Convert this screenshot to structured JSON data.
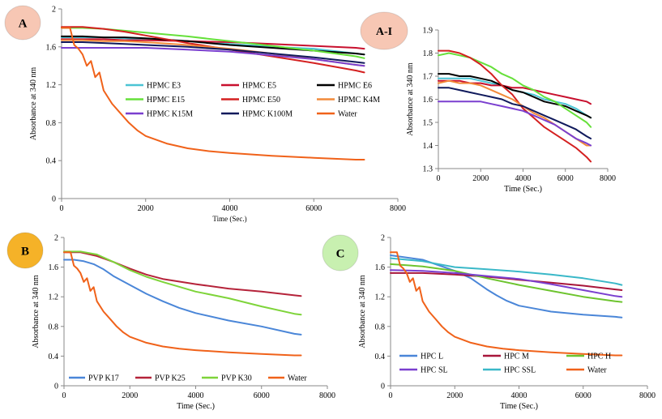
{
  "chart_data": [
    {
      "id": "A",
      "type": "line",
      "badge": "A",
      "badge_color": "#f7c7b4",
      "xlabel": "Time (Sec.)",
      "ylabel": "Absorbance at 340 nm",
      "xlim": [
        0,
        8000
      ],
      "ylim": [
        0,
        2
      ],
      "xticks": [
        0,
        2000,
        4000,
        6000,
        8000
      ],
      "yticks": [
        0,
        0.4,
        0.8,
        1.2,
        1.6,
        2
      ],
      "ytick_labels": [
        "0",
        "0.4",
        "0.8",
        "1.2",
        "1.6",
        "2"
      ],
      "legend_position": "middle",
      "legend_columns": 3,
      "series": [
        {
          "name": "HPMC E3",
          "color": "#4bc4d4",
          "x": [
            0,
            500,
            1000,
            1500,
            2000,
            3000,
            4000,
            5000,
            6000,
            7000,
            7200
          ],
          "values": [
            1.7,
            1.7,
            1.7,
            1.69,
            1.68,
            1.66,
            1.63,
            1.6,
            1.58,
            1.53,
            1.52
          ]
        },
        {
          "name": "HPMC E5",
          "color": "#c8102e",
          "x": [
            0,
            500,
            1000,
            1500,
            2000,
            3000,
            4000,
            5000,
            6000,
            7000,
            7200
          ],
          "values": [
            1.68,
            1.68,
            1.68,
            1.67,
            1.67,
            1.66,
            1.65,
            1.63,
            1.61,
            1.59,
            1.58
          ]
        },
        {
          "name": "HPMC E6",
          "color": "#000000",
          "x": [
            0,
            500,
            1000,
            1500,
            2000,
            3000,
            4000,
            5000,
            6000,
            7000,
            7200
          ],
          "values": [
            1.71,
            1.71,
            1.7,
            1.7,
            1.69,
            1.66,
            1.62,
            1.59,
            1.56,
            1.53,
            1.52
          ]
        },
        {
          "name": "HPMC E15",
          "color": "#66e03a",
          "x": [
            0,
            500,
            1000,
            1500,
            2000,
            3000,
            4000,
            5000,
            6000,
            7000,
            7200
          ],
          "values": [
            1.8,
            1.8,
            1.79,
            1.77,
            1.75,
            1.71,
            1.66,
            1.61,
            1.56,
            1.5,
            1.48
          ]
        },
        {
          "name": "HPMC E50",
          "color": "#d42020",
          "x": [
            0,
            500,
            1000,
            1500,
            2000,
            3000,
            4000,
            5000,
            6000,
            7000,
            7200
          ],
          "values": [
            1.81,
            1.81,
            1.79,
            1.76,
            1.72,
            1.64,
            1.57,
            1.5,
            1.43,
            1.35,
            1.33
          ]
        },
        {
          "name": "HPMC K4M",
          "color": "#f28a3a",
          "x": [
            0,
            500,
            1000,
            1500,
            2000,
            3000,
            4000,
            5000,
            6000,
            7000,
            7200
          ],
          "values": [
            1.67,
            1.67,
            1.66,
            1.66,
            1.65,
            1.62,
            1.58,
            1.53,
            1.47,
            1.41,
            1.4
          ]
        },
        {
          "name": "HPMC K15M",
          "color": "#7a3fcf",
          "x": [
            0,
            500,
            1000,
            1500,
            2000,
            3000,
            4000,
            5000,
            6000,
            7000,
            7200
          ],
          "values": [
            1.59,
            1.59,
            1.59,
            1.59,
            1.59,
            1.57,
            1.55,
            1.51,
            1.47,
            1.41,
            1.4
          ]
        },
        {
          "name": "HPMC K100M",
          "color": "#101a5c",
          "x": [
            0,
            500,
            1000,
            1500,
            2000,
            3000,
            4000,
            5000,
            6000,
            7000,
            7200
          ],
          "values": [
            1.65,
            1.65,
            1.64,
            1.63,
            1.62,
            1.6,
            1.57,
            1.53,
            1.49,
            1.44,
            1.43
          ]
        },
        {
          "name": "Water",
          "color": "#f0621a",
          "x": [
            0,
            200,
            300,
            400,
            500,
            600,
            700,
            800,
            900,
            1000,
            1200,
            1400,
            1600,
            1800,
            2000,
            2500,
            3000,
            3500,
            4000,
            5000,
            6000,
            7000,
            7200
          ],
          "values": [
            1.8,
            1.8,
            1.62,
            1.58,
            1.52,
            1.4,
            1.45,
            1.28,
            1.33,
            1.14,
            1.0,
            0.9,
            0.8,
            0.72,
            0.66,
            0.58,
            0.53,
            0.5,
            0.48,
            0.45,
            0.43,
            0.41,
            0.41
          ]
        }
      ]
    },
    {
      "id": "A-I",
      "type": "line",
      "badge": "A-I",
      "badge_color": "#f7c7b4",
      "xlabel": "Time (Sec.)",
      "ylabel": "Absorbance at 340 nm",
      "xlim": [
        0,
        8000
      ],
      "ylim": [
        1.3,
        1.9
      ],
      "xticks": [
        0,
        2000,
        4000,
        6000,
        8000
      ],
      "yticks": [
        1.3,
        1.4,
        1.5,
        1.6,
        1.7,
        1.8,
        1.9
      ],
      "ytick_labels": [
        "1.3",
        "1.4",
        "1.5",
        "1.6",
        "1.7",
        "1.8",
        "1.9"
      ],
      "series": [
        {
          "name": "HPMC E3",
          "color": "#4bc4d4",
          "x": [
            0,
            500,
            1000,
            1500,
            2000,
            2500,
            3000,
            3500,
            4000,
            4500,
            5000,
            5500,
            6000,
            6500,
            7000,
            7200
          ],
          "values": [
            1.69,
            1.69,
            1.69,
            1.69,
            1.68,
            1.67,
            1.66,
            1.64,
            1.63,
            1.62,
            1.6,
            1.59,
            1.58,
            1.56,
            1.53,
            1.52
          ]
        },
        {
          "name": "HPMC E5",
          "color": "#c8102e",
          "x": [
            0,
            500,
            1000,
            1500,
            2000,
            2500,
            3000,
            3500,
            4000,
            4500,
            5000,
            5500,
            6000,
            6500,
            7000,
            7200
          ],
          "values": [
            1.68,
            1.68,
            1.68,
            1.67,
            1.67,
            1.66,
            1.66,
            1.65,
            1.65,
            1.64,
            1.63,
            1.62,
            1.61,
            1.6,
            1.59,
            1.58
          ]
        },
        {
          "name": "HPMC E6",
          "color": "#000000",
          "x": [
            0,
            500,
            1000,
            1500,
            2000,
            2500,
            3000,
            3500,
            4000,
            4500,
            5000,
            5500,
            6000,
            6500,
            7000,
            7200
          ],
          "values": [
            1.71,
            1.71,
            1.7,
            1.7,
            1.69,
            1.68,
            1.66,
            1.64,
            1.63,
            1.61,
            1.59,
            1.58,
            1.57,
            1.55,
            1.53,
            1.52
          ]
        },
        {
          "name": "HPMC E15",
          "color": "#66e03a",
          "x": [
            0,
            500,
            1000,
            1500,
            2000,
            2500,
            3000,
            3500,
            4000,
            4500,
            5000,
            5500,
            6000,
            6500,
            7000,
            7200
          ],
          "values": [
            1.79,
            1.8,
            1.79,
            1.78,
            1.76,
            1.74,
            1.71,
            1.69,
            1.66,
            1.64,
            1.61,
            1.59,
            1.56,
            1.53,
            1.5,
            1.48
          ]
        },
        {
          "name": "HPMC E50",
          "color": "#d42020",
          "x": [
            0,
            500,
            1000,
            1500,
            2000,
            2500,
            3000,
            3500,
            4000,
            4500,
            5000,
            5500,
            6000,
            6500,
            7000,
            7200
          ],
          "values": [
            1.81,
            1.81,
            1.8,
            1.78,
            1.75,
            1.71,
            1.66,
            1.62,
            1.56,
            1.52,
            1.48,
            1.45,
            1.42,
            1.39,
            1.35,
            1.33
          ]
        },
        {
          "name": "HPMC K4M",
          "color": "#f28a3a",
          "x": [
            0,
            500,
            1000,
            1500,
            2000,
            2500,
            3000,
            3500,
            4000,
            4500,
            5000,
            5500,
            6000,
            6500,
            7000,
            7200
          ],
          "values": [
            1.67,
            1.68,
            1.67,
            1.67,
            1.66,
            1.64,
            1.62,
            1.6,
            1.57,
            1.54,
            1.52,
            1.49,
            1.46,
            1.43,
            1.4,
            1.4
          ]
        },
        {
          "name": "HPMC K15M",
          "color": "#7a3fcf",
          "x": [
            0,
            500,
            1000,
            1500,
            2000,
            2500,
            3000,
            3500,
            4000,
            4500,
            5000,
            5500,
            6000,
            6500,
            7000,
            7200
          ],
          "values": [
            1.59,
            1.59,
            1.59,
            1.59,
            1.59,
            1.58,
            1.57,
            1.56,
            1.55,
            1.53,
            1.51,
            1.49,
            1.46,
            1.43,
            1.41,
            1.4
          ]
        },
        {
          "name": "HPMC K100M",
          "color": "#101a5c",
          "x": [
            0,
            500,
            1000,
            1500,
            2000,
            2500,
            3000,
            3500,
            4000,
            4500,
            5000,
            5500,
            6000,
            6500,
            7000,
            7200
          ],
          "values": [
            1.65,
            1.65,
            1.64,
            1.63,
            1.62,
            1.61,
            1.6,
            1.58,
            1.57,
            1.55,
            1.53,
            1.51,
            1.49,
            1.47,
            1.44,
            1.43
          ]
        }
      ]
    },
    {
      "id": "B",
      "type": "line",
      "badge": "B",
      "badge_color": "#f5b228",
      "xlabel": "Time (Sec.)",
      "ylabel": "Absorbance at 340 nm",
      "xlim": [
        0,
        8000
      ],
      "ylim": [
        0,
        2
      ],
      "xticks": [
        0,
        2000,
        4000,
        6000,
        8000
      ],
      "yticks": [
        0,
        0.4,
        0.8,
        1.2,
        1.6,
        2
      ],
      "ytick_labels": [
        "0",
        "0.4",
        "0.8",
        "1.2",
        "1.6",
        "2"
      ],
      "legend_position": "bottom",
      "legend_columns": 4,
      "series": [
        {
          "name": "PVP K17",
          "color": "#4a86d8",
          "x": [
            0,
            300,
            600,
            900,
            1200,
            1500,
            2000,
            2500,
            3000,
            3500,
            4000,
            5000,
            6000,
            7000,
            7200
          ],
          "values": [
            1.7,
            1.7,
            1.68,
            1.64,
            1.57,
            1.48,
            1.36,
            1.24,
            1.14,
            1.05,
            0.98,
            0.88,
            0.8,
            0.7,
            0.69
          ]
        },
        {
          "name": "PVP K25",
          "color": "#b5233a",
          "x": [
            0,
            500,
            1000,
            1500,
            2000,
            2500,
            3000,
            4000,
            5000,
            6000,
            7000,
            7200
          ],
          "values": [
            1.8,
            1.8,
            1.75,
            1.67,
            1.58,
            1.5,
            1.44,
            1.37,
            1.31,
            1.27,
            1.22,
            1.21
          ]
        },
        {
          "name": "PVP K30",
          "color": "#7ed43a",
          "x": [
            0,
            500,
            1000,
            1500,
            2000,
            2500,
            3000,
            4000,
            5000,
            6000,
            7000,
            7200
          ],
          "values": [
            1.81,
            1.81,
            1.77,
            1.67,
            1.56,
            1.47,
            1.4,
            1.27,
            1.18,
            1.07,
            0.97,
            0.96
          ]
        },
        {
          "name": "Water",
          "color": "#f0621a",
          "x": [
            0,
            200,
            300,
            400,
            500,
            600,
            700,
            800,
            900,
            1000,
            1200,
            1400,
            1600,
            1800,
            2000,
            2500,
            3000,
            3500,
            4000,
            5000,
            6000,
            7000,
            7200
          ],
          "values": [
            1.8,
            1.8,
            1.62,
            1.58,
            1.52,
            1.4,
            1.45,
            1.28,
            1.33,
            1.14,
            1.0,
            0.9,
            0.8,
            0.72,
            0.66,
            0.58,
            0.53,
            0.5,
            0.48,
            0.45,
            0.43,
            0.41,
            0.41
          ]
        }
      ]
    },
    {
      "id": "C",
      "type": "line",
      "badge": "C",
      "badge_color": "#c8f0b0",
      "xlabel": "Time (Sec.)",
      "ylabel": "Absorbance at 340 nm",
      "xlim": [
        0,
        8000
      ],
      "ylim": [
        0,
        2
      ],
      "xticks": [
        0,
        2000,
        4000,
        6000,
        8000
      ],
      "yticks": [
        0,
        0.4,
        0.8,
        1.2,
        1.6,
        2
      ],
      "ytick_labels": [
        "0",
        "0.4",
        "0.8",
        "1.2",
        "1.6",
        "2"
      ],
      "legend_position": "bottom",
      "legend_columns": 3,
      "series": [
        {
          "name": "HPC L",
          "color": "#4a86d8",
          "x": [
            0,
            1000,
            2000,
            2500,
            3000,
            3300,
            3600,
            4000,
            4500,
            5000,
            6000,
            7000,
            7200
          ],
          "values": [
            1.76,
            1.7,
            1.55,
            1.45,
            1.3,
            1.22,
            1.15,
            1.08,
            1.04,
            1.0,
            0.96,
            0.93,
            0.92
          ]
        },
        {
          "name": "HPC M",
          "color": "#a8163a",
          "x": [
            0,
            1000,
            2000,
            3000,
            4000,
            5000,
            6000,
            7000,
            7200
          ],
          "values": [
            1.52,
            1.52,
            1.5,
            1.47,
            1.43,
            1.39,
            1.35,
            1.3,
            1.29
          ]
        },
        {
          "name": "HPC H",
          "color": "#6dc42e",
          "x": [
            0,
            1000,
            2000,
            3000,
            4000,
            5000,
            6000,
            7000,
            7200
          ],
          "values": [
            1.64,
            1.61,
            1.55,
            1.45,
            1.36,
            1.28,
            1.2,
            1.14,
            1.13
          ]
        },
        {
          "name": "HPC SL",
          "color": "#7a3fcf",
          "x": [
            0,
            1000,
            2000,
            3000,
            4000,
            5000,
            6000,
            7000,
            7200
          ],
          "values": [
            1.56,
            1.55,
            1.52,
            1.48,
            1.44,
            1.37,
            1.29,
            1.21,
            1.2
          ]
        },
        {
          "name": "HPC SSL",
          "color": "#3ab8c8",
          "x": [
            0,
            1000,
            2000,
            3000,
            4000,
            5000,
            6000,
            7000,
            7200
          ],
          "values": [
            1.72,
            1.68,
            1.6,
            1.57,
            1.54,
            1.5,
            1.45,
            1.38,
            1.36
          ]
        },
        {
          "name": "Water",
          "color": "#f0621a",
          "x": [
            0,
            200,
            300,
            400,
            500,
            600,
            700,
            800,
            900,
            1000,
            1200,
            1400,
            1600,
            1800,
            2000,
            2500,
            3000,
            3500,
            4000,
            5000,
            6000,
            7000,
            7200
          ],
          "values": [
            1.8,
            1.8,
            1.62,
            1.58,
            1.52,
            1.4,
            1.45,
            1.28,
            1.33,
            1.14,
            1.0,
            0.9,
            0.8,
            0.72,
            0.66,
            0.58,
            0.53,
            0.5,
            0.48,
            0.45,
            0.43,
            0.41,
            0.41
          ]
        }
      ]
    }
  ]
}
